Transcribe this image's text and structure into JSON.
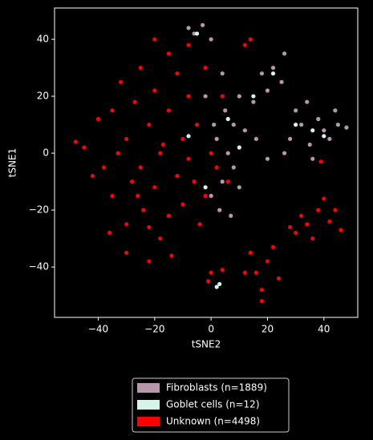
{
  "chart_data": {
    "type": "scatter",
    "x_label": "tSNE2",
    "y_label": "tSNE1",
    "xlim": [
      -55.5,
      52
    ],
    "ylim": [
      -57.7,
      51
    ],
    "xticks": [
      {
        "value": -40,
        "label": "−40"
      },
      {
        "value": -20,
        "label": "−20"
      },
      0,
      20,
      40
    ],
    "yticks": [
      {
        "value": -40,
        "label": "−40"
      },
      {
        "value": -20,
        "label": "−20"
      },
      0,
      20,
      40
    ],
    "legend": "below",
    "series": [
      {
        "name": "Unknown (n=4498)",
        "color": "#ff0000",
        "x": [
          -48,
          -45,
          -40,
          -38,
          -35,
          -35,
          -32,
          -30,
          -30,
          -28,
          -27,
          -25,
          -25,
          -24,
          -22,
          -20,
          -20,
          -20,
          -18,
          -17,
          -15,
          -15,
          -15,
          -12,
          -12,
          -10,
          -10,
          -8,
          -8,
          -6,
          -5,
          -4,
          -2,
          -2,
          0,
          2,
          4,
          6,
          12,
          14,
          -22,
          -30,
          -14,
          -36,
          -42,
          -26,
          -33,
          -18,
          -22,
          -8,
          30,
          34,
          38,
          40,
          42,
          46,
          36,
          32,
          44,
          28,
          14,
          16,
          18,
          20,
          22,
          18,
          12,
          24,
          0,
          4,
          -1,
          39
        ],
        "y": [
          4,
          2,
          12,
          -5,
          15,
          -15,
          25,
          5,
          -25,
          -10,
          18,
          30,
          -5,
          -20,
          10,
          40,
          22,
          -12,
          -30,
          3,
          35,
          15,
          -22,
          28,
          -8,
          5,
          -18,
          38,
          20,
          -10,
          10,
          -25,
          30,
          -15,
          0,
          -5,
          20,
          -10,
          38,
          40,
          -38,
          -35,
          -36,
          -28,
          -8,
          -15,
          0,
          0,
          -26,
          -2,
          -28,
          -25,
          -20,
          -16,
          -24,
          -27,
          -30,
          -22,
          -20,
          -26,
          -35,
          -42,
          -48,
          -38,
          -33,
          -52,
          -42,
          -44,
          -42,
          -41,
          -45,
          -3
        ]
      },
      {
        "name": "Fibroblasts (n=1889)",
        "color": "#b797aa",
        "x": [
          -8,
          -6,
          0,
          -3,
          5,
          8,
          2,
          10,
          6,
          12,
          4,
          8,
          0,
          3,
          15,
          18,
          22,
          25,
          20,
          26,
          28,
          32,
          35,
          38,
          40,
          42,
          45,
          36,
          30,
          44,
          34,
          48,
          16,
          10,
          -2,
          4,
          1,
          20,
          7,
          26
        ],
        "y": [
          44,
          42,
          40,
          45,
          15,
          10,
          5,
          20,
          0,
          8,
          -10,
          -5,
          -15,
          -20,
          18,
          28,
          30,
          25,
          22,
          35,
          5,
          10,
          3,
          12,
          8,
          5,
          10,
          -2,
          15,
          15,
          18,
          9,
          5,
          -12,
          20,
          28,
          10,
          -2,
          -22,
          0
        ]
      },
      {
        "name": "Goblet cells (n=12)",
        "color": "#d6f5ea",
        "x": [
          2,
          3,
          -5,
          6,
          22,
          36,
          -8,
          10,
          30,
          -2,
          15,
          40
        ],
        "y": [
          -47,
          -46,
          42,
          12,
          28,
          8,
          6,
          2,
          10,
          -12,
          20,
          6
        ]
      }
    ]
  }
}
